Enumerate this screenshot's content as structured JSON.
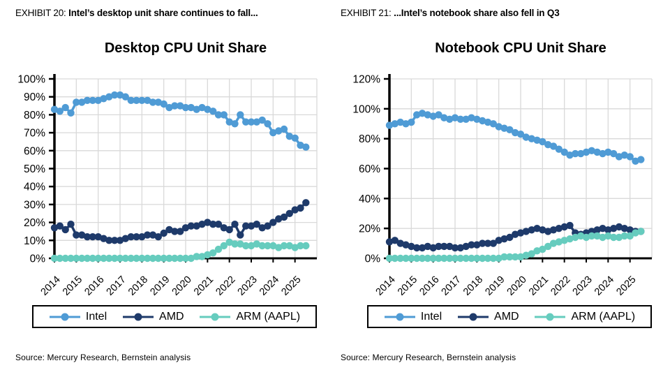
{
  "panels": [
    {
      "exhibit_label": "EXHIBIT 20:",
      "exhibit_title": "Intel’s desktop unit share continues to fall...",
      "source": "Source: Mercury Research, Bernstein analysis"
    },
    {
      "exhibit_label": "EXHIBIT 21:",
      "exhibit_title": "...Intel’s notebook share also fell in Q3",
      "source": "Source: Mercury Research, Bernstein analysis"
    }
  ],
  "colors": {
    "intel": "#4f9bd5",
    "amd": "#1e3a6a",
    "arm": "#66ccbe",
    "grid": "#d9d9d9",
    "axis": "#000000",
    "text": "#000000",
    "background": "#ffffff"
  },
  "chart_data": [
    {
      "type": "line",
      "title": "Desktop CPU Unit Share",
      "xlabel": "",
      "ylabel": "",
      "grid": true,
      "legend_position": "bottom",
      "x_tick_labels": [
        "2014",
        "2015",
        "2016",
        "2017",
        "2018",
        "2019",
        "2020",
        "2021",
        "2022",
        "2023",
        "2024",
        "2025"
      ],
      "x_range": [
        2014,
        2026
      ],
      "x_points_per_year": 4,
      "ylim": [
        0,
        100
      ],
      "y_tick_step": 10,
      "y_tick_suffix": "%",
      "series": [
        {
          "name": "Intel",
          "color": "#4f9bd5",
          "values": [
            83,
            82,
            84,
            81,
            87,
            87,
            88,
            88,
            88,
            89,
            90,
            91,
            91,
            90,
            88,
            88,
            88,
            88,
            87,
            87,
            86,
            84,
            85,
            85,
            84,
            84,
            83,
            84,
            83,
            82,
            80,
            80,
            76,
            75,
            80,
            76,
            76,
            76,
            77,
            75,
            70,
            71,
            72,
            68,
            67,
            63,
            62
          ]
        },
        {
          "name": "AMD",
          "color": "#1e3a6a",
          "values": [
            17,
            18,
            16,
            19,
            13,
            13,
            12,
            12,
            12,
            11,
            10,
            10,
            10,
            11,
            12,
            12,
            12,
            13,
            13,
            12,
            14,
            16,
            15,
            15,
            17,
            18,
            18,
            19,
            20,
            19,
            19,
            17,
            16,
            19,
            13,
            18,
            18,
            19,
            17,
            18,
            20,
            22,
            23,
            25,
            27,
            28,
            31
          ]
        },
        {
          "name": "ARM (AAPL)",
          "color": "#66ccbe",
          "values": [
            0,
            0,
            0,
            0,
            0,
            0,
            0,
            0,
            0,
            0,
            0,
            0,
            0,
            0,
            0,
            0,
            0,
            0,
            0,
            0,
            0,
            0,
            0,
            0,
            0,
            0,
            1,
            1,
            2,
            3,
            5,
            7,
            9,
            8,
            8,
            7,
            7,
            8,
            7,
            7,
            7,
            6,
            7,
            7,
            6,
            7,
            7
          ]
        }
      ]
    },
    {
      "type": "line",
      "title": "Notebook CPU Unit Share",
      "xlabel": "",
      "ylabel": "",
      "grid": true,
      "legend_position": "bottom",
      "x_tick_labels": [
        "2014",
        "2015",
        "2016",
        "2017",
        "2018",
        "2019",
        "2020",
        "2021",
        "2022",
        "2023",
        "2024",
        "2025"
      ],
      "x_range": [
        2014,
        2026
      ],
      "x_points_per_year": 4,
      "ylim": [
        0,
        120
      ],
      "y_tick_step": 20,
      "y_tick_suffix": "%",
      "series": [
        {
          "name": "Intel",
          "color": "#4f9bd5",
          "values": [
            89,
            90,
            91,
            90,
            91,
            96,
            97,
            96,
            95,
            96,
            94,
            93,
            94,
            93,
            93,
            94,
            93,
            92,
            91,
            90,
            88,
            87,
            86,
            84,
            83,
            81,
            80,
            79,
            78,
            76,
            75,
            73,
            71,
            69,
            70,
            70,
            71,
            72,
            71,
            70,
            71,
            70,
            68,
            69,
            68,
            65,
            66
          ]
        },
        {
          "name": "AMD",
          "color": "#1e3a6a",
          "values": [
            11,
            12,
            10,
            9,
            8,
            7,
            7,
            8,
            7,
            8,
            8,
            8,
            7,
            7,
            8,
            9,
            9,
            10,
            10,
            10,
            12,
            13,
            14,
            16,
            17,
            18,
            19,
            20,
            19,
            18,
            19,
            20,
            21,
            22,
            17,
            16,
            17,
            18,
            19,
            20,
            19,
            20,
            21,
            20,
            19,
            18,
            18
          ]
        },
        {
          "name": "ARM (AAPL)",
          "color": "#66ccbe",
          "values": [
            0,
            0,
            0,
            0,
            0,
            0,
            0,
            0,
            0,
            0,
            0,
            0,
            0,
            0,
            0,
            0,
            0,
            0,
            0,
            0,
            0,
            1,
            1,
            1,
            1,
            2,
            3,
            5,
            6,
            8,
            10,
            11,
            12,
            13,
            14,
            15,
            14,
            15,
            15,
            14,
            15,
            14,
            14,
            15,
            15,
            17,
            18
          ]
        }
      ]
    }
  ]
}
